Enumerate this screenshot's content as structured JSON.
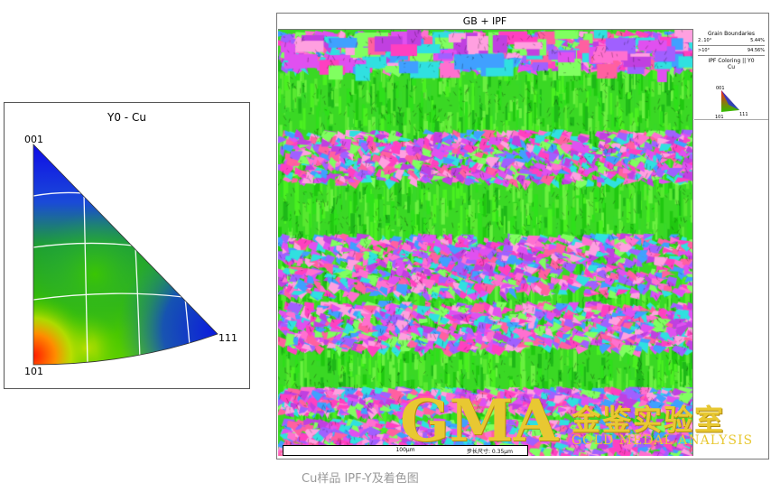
{
  "pole_figure": {
    "title": "Y0 - Cu",
    "corner_top": "001",
    "corner_bottom": "101",
    "corner_right": "111"
  },
  "map": {
    "title": "GB + IPF",
    "legend": {
      "gb_title": "Grain Boundaries",
      "gb_rows": [
        {
          "range": "2..10°",
          "percent": "5.44%"
        },
        {
          "range": ">10°",
          "percent": "94.56%"
        }
      ],
      "ipf_title": "IPF Coloring || Y0",
      "ipf_phase": "Cu",
      "tri_top": "001",
      "tri_bottom": "101",
      "tri_right": "111"
    },
    "scale_bar": "100µm",
    "step_size": "步长尺寸: 0.35µm"
  },
  "watermark": {
    "logo_text": "GMA",
    "cn_name": "金鉴实验室",
    "en_name": "GOLD MEDAL ANALYSIS",
    "color": "#e8c832"
  },
  "caption": "Cu样品 IPF-Y及着色图"
}
